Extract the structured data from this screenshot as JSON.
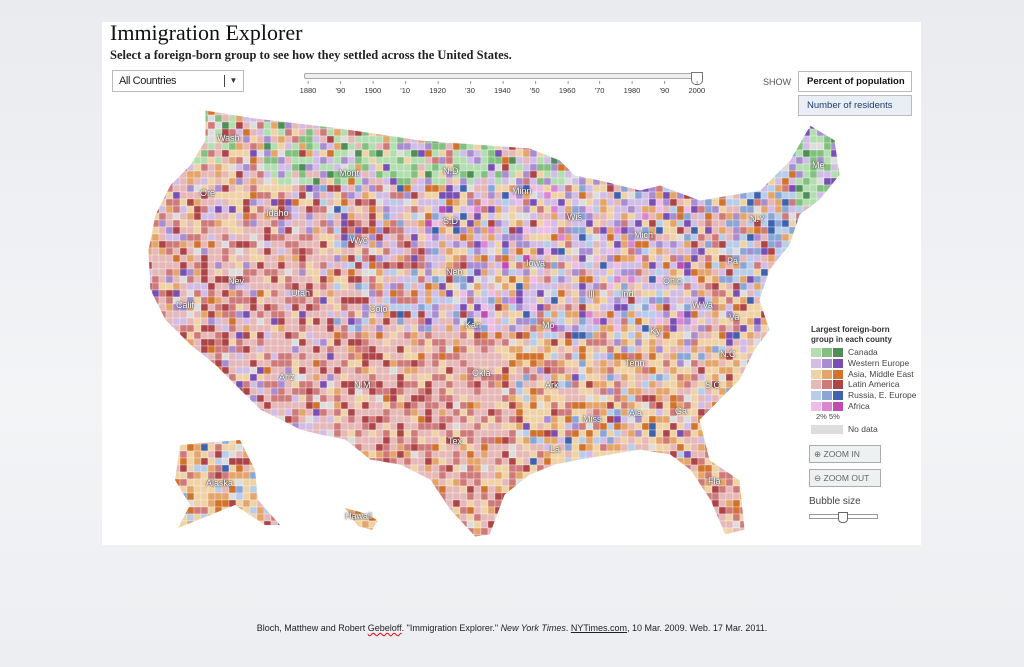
{
  "header": {
    "title": "Immigration Explorer",
    "subtitle": "Select a foreign-born group to see how they settled across the United States."
  },
  "group_select": {
    "value": "All Countries"
  },
  "timeline": {
    "ticks": [
      "1880",
      "'90",
      "1900",
      "'10",
      "1920",
      "'30",
      "1940",
      "'50",
      "1960",
      "'70",
      "1980",
      "'90",
      "2000"
    ],
    "selected": "2000"
  },
  "show": {
    "label": "SHOW",
    "options": [
      "Percent of population",
      "Number of residents"
    ],
    "selected": "Percent of population"
  },
  "states": [
    "Wash",
    "Ore",
    "Idaho",
    "Mont",
    "Wyo",
    "N.D",
    "S.D",
    "Minn",
    "Wis",
    "Mich",
    "N.Y",
    "Me",
    "Pa",
    "Ohio",
    "Ind",
    "Ill",
    "Iowa",
    "Neb",
    "Colo",
    "Utah",
    "Nev",
    "Calif",
    "Kan",
    "Mo",
    "Ky",
    "W.Va",
    "Va",
    "N.C",
    "Tenn",
    "Okla",
    "Ark",
    "Ariz",
    "N.M",
    "Tex",
    "La",
    "Miss",
    "Ala",
    "Ga",
    "S.C",
    "Fla",
    "Alaska",
    "Hawaii"
  ],
  "legend": {
    "title": "Largest foreign-born group in each county",
    "groups": [
      {
        "name": "Canada",
        "colors": [
          "#b3deb0",
          "#82c07f",
          "#4f8f57"
        ]
      },
      {
        "name": "Western Europe",
        "colors": [
          "#d2bde6",
          "#a88ed0",
          "#7a4fb5"
        ]
      },
      {
        "name": "Asia, Middle East",
        "colors": [
          "#efd2a6",
          "#e4a56b",
          "#d2732c"
        ]
      },
      {
        "name": "Latin America",
        "colors": [
          "#e7b8b8",
          "#cf7a7a",
          "#ad4448"
        ]
      },
      {
        "name": "Russia, E. Europe",
        "colors": [
          "#b7cde9",
          "#8aa6d6",
          "#3f62ad"
        ]
      },
      {
        "name": "Africa",
        "colors": [
          "#eebde6",
          "#dc86d2",
          "#c24ab3"
        ]
      }
    ],
    "scale": "2% 5%",
    "no_data": "No data",
    "no_data_color": "#dddddd"
  },
  "controls": {
    "zoom_in": "ZOOM IN",
    "zoom_out": "ZOOM OUT",
    "bubble_size": "Bubble size"
  },
  "citation": {
    "authors": "Bloch, Matthew and Robert ",
    "author_last": "Gebeloff",
    ". \"Immigration Explorer.\" ": "",
    "title_part": ". \"Immigration Explorer.\" ",
    "publication": "New York Times",
    "site": "NYTimes.com",
    "rest": ", 10 Mar. 2009. Web. 17 Mar. 2011."
  }
}
